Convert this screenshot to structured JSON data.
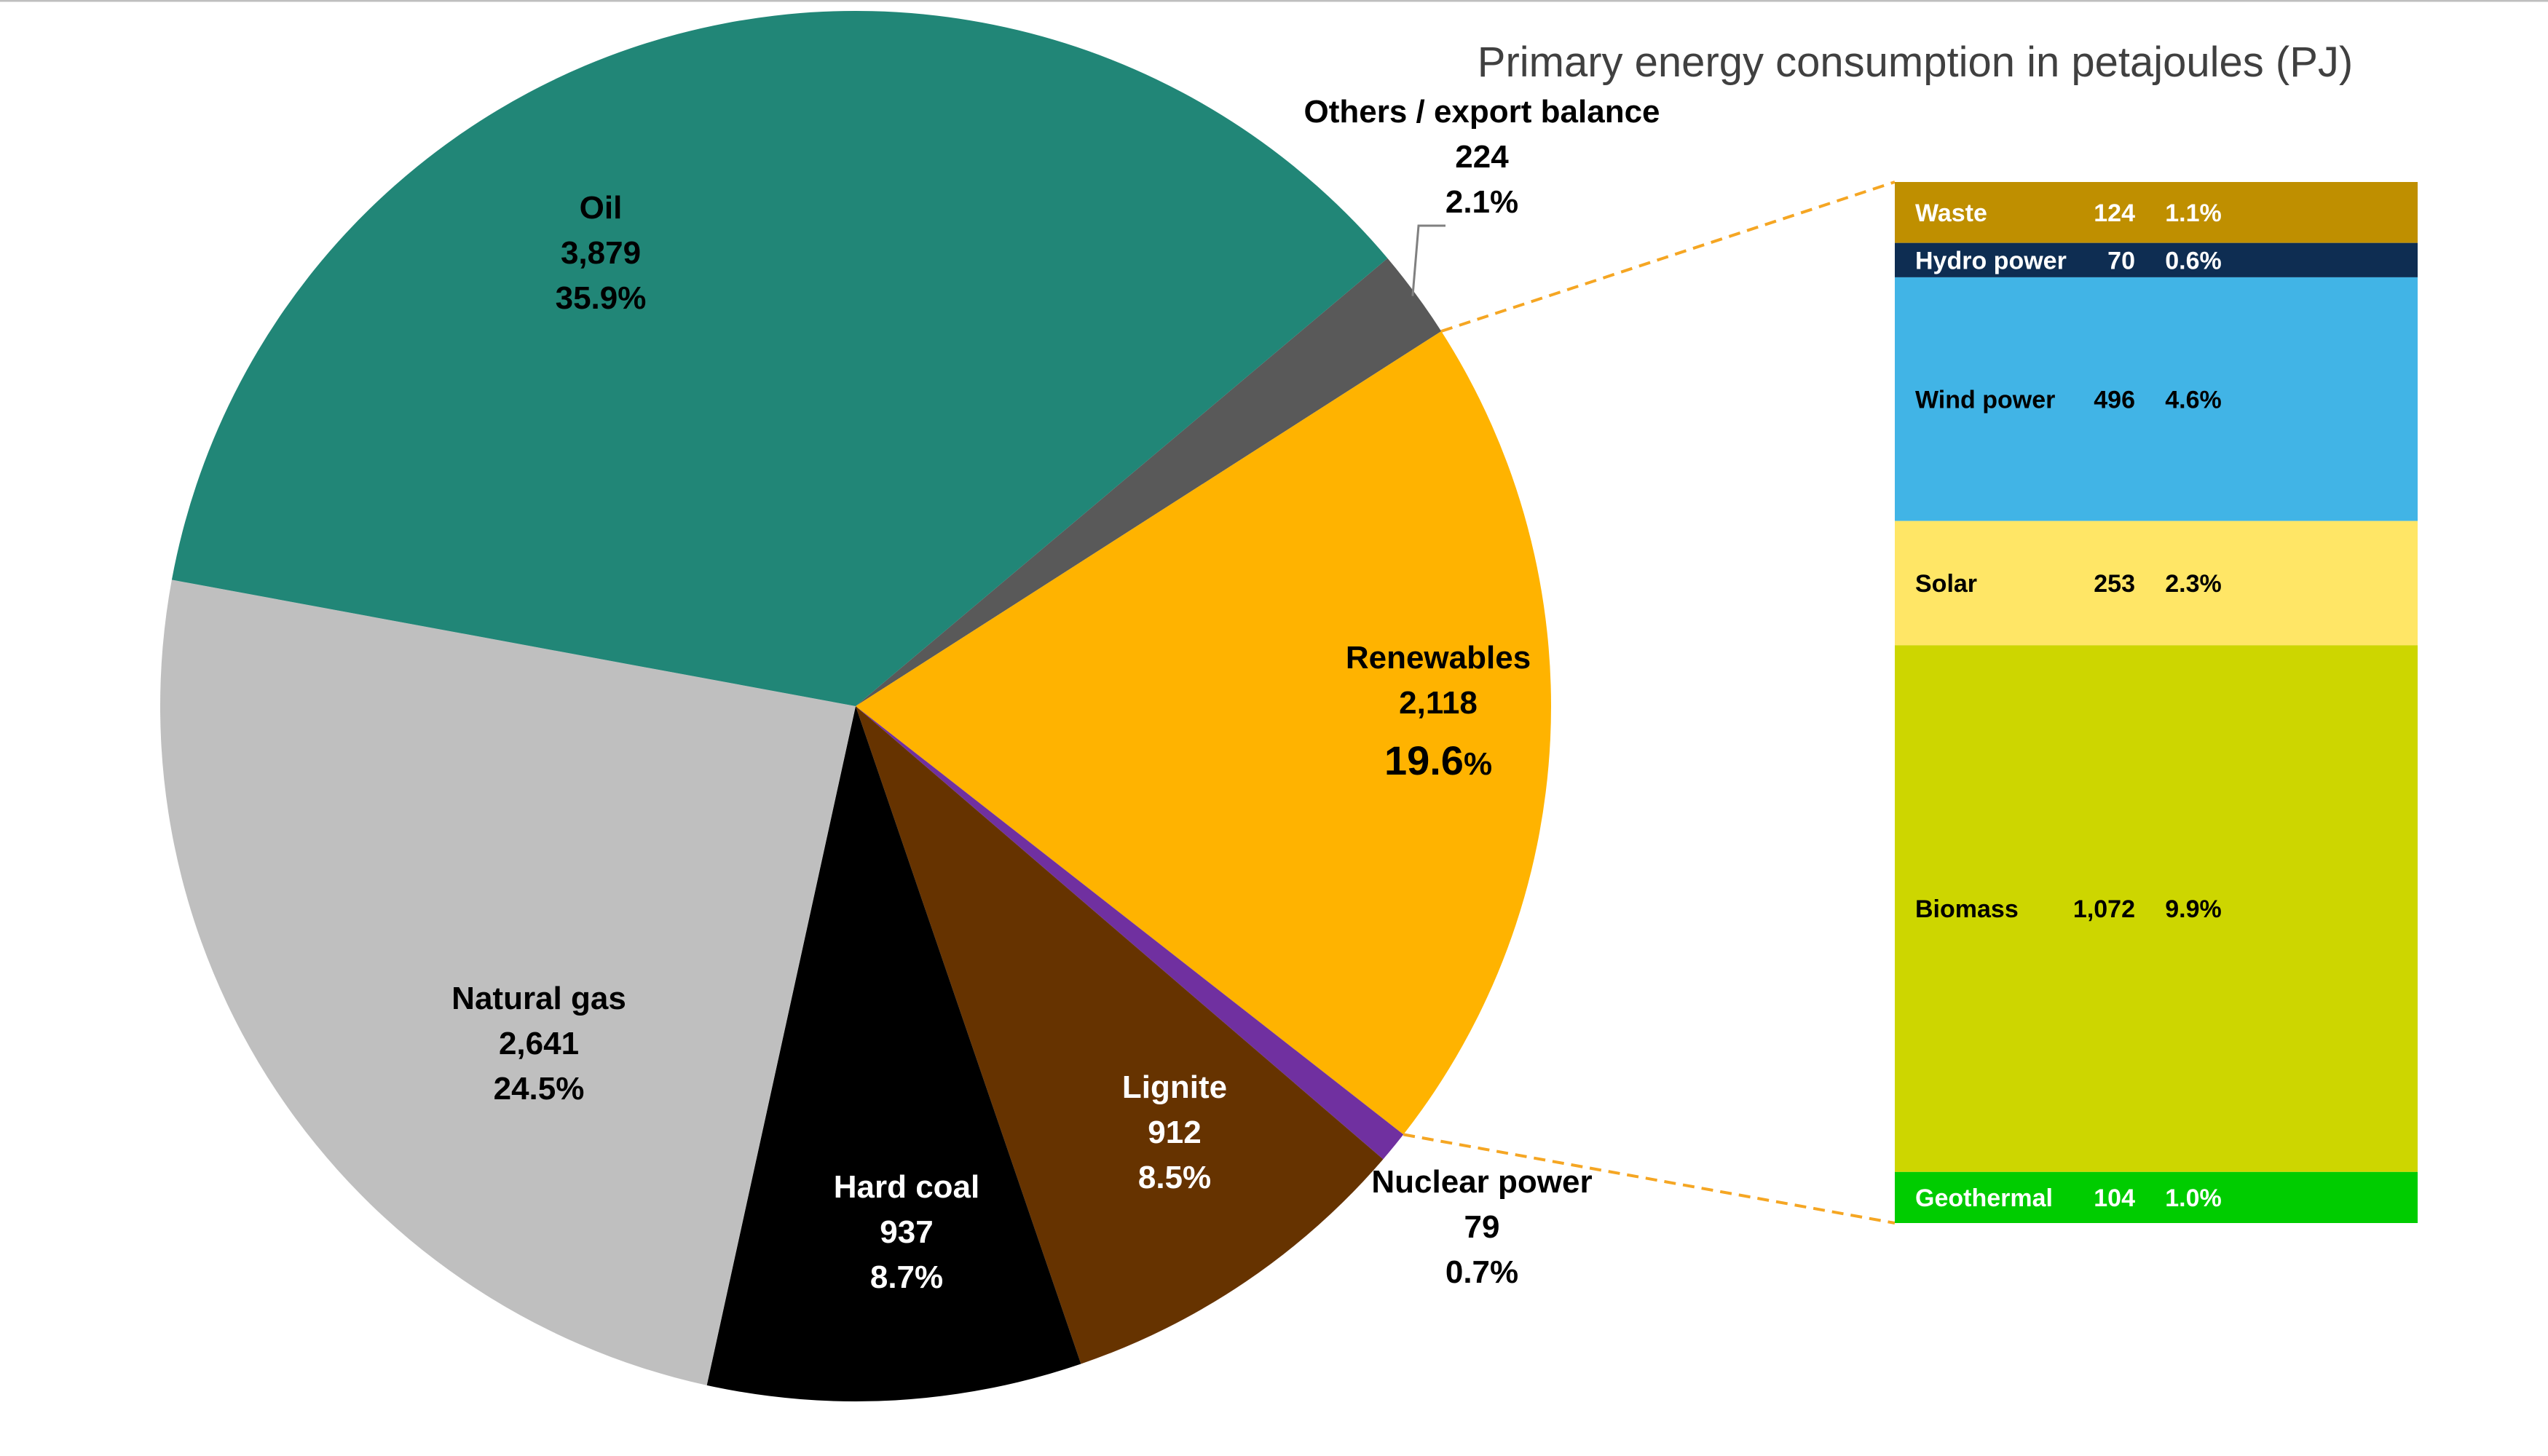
{
  "chart_data": {
    "type": "pie",
    "title": "Primary energy consumption in petajoules (PJ)",
    "slices": [
      {
        "name": "Others / export balance",
        "value": 224,
        "value_label": "224",
        "percent_label": "2.1%",
        "color": "#595959"
      },
      {
        "name": "Renewables",
        "value": 2118,
        "value_label": "2,118",
        "percent_label": "19.6",
        "percent_sign": "%",
        "color": "#FFB300"
      },
      {
        "name": "Nuclear power",
        "value": 79,
        "value_label": "79",
        "percent_label": "0.7%",
        "color": "#7030A0"
      },
      {
        "name": "Lignite",
        "value": 912,
        "value_label": "912",
        "percent_label": "8.5%",
        "color": "#663300"
      },
      {
        "name": "Hard coal",
        "value": 937,
        "value_label": "937",
        "percent_label": "8.7%",
        "color": "#000000"
      },
      {
        "name": "Natural gas",
        "value": 2641,
        "value_label": "2,641",
        "percent_label": "24.5%",
        "color": "#BFBFBF"
      },
      {
        "name": "Oil",
        "value": 3879,
        "value_label": "3,879",
        "percent_label": "35.9%",
        "color": "#218677"
      }
    ],
    "breakdown": {
      "parent": "Renewables",
      "segments": [
        {
          "name": "Waste",
          "value": 124,
          "value_label": "124",
          "percent_label": "1.1%",
          "color": "#BF8F00",
          "text_color": "#ffffff"
        },
        {
          "name": "Hydro power",
          "value": 70,
          "value_label": "70",
          "percent_label": "0.6%",
          "color": "#0E2D52",
          "text_color": "#ffffff"
        },
        {
          "name": "Wind power",
          "value": 496,
          "value_label": "496",
          "percent_label": "4.6%",
          "color": "#41B4E6",
          "text_color": "#000000"
        },
        {
          "name": "Solar",
          "value": 253,
          "value_label": "253",
          "percent_label": "2.3%",
          "color": "#FFE666",
          "text_color": "#000000"
        },
        {
          "name": "Biomass",
          "value": 1072,
          "value_label": "1,072",
          "percent_label": "9.9%",
          "color": "#CDD600",
          "text_color": "#000000"
        },
        {
          "name": "Geothermal",
          "value": 104,
          "value_label": "104",
          "percent_label": "1.0%",
          "color": "#00CC00",
          "text_color": "#ffffff"
        }
      ]
    },
    "connector_color": "#F5A623",
    "legend": "none"
  }
}
